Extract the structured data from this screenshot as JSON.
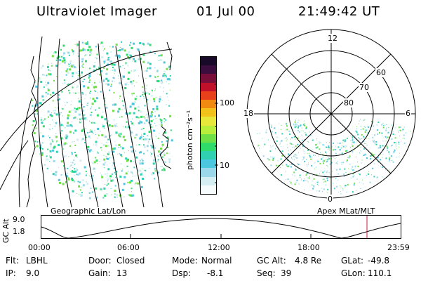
{
  "header": {
    "instrument": "Ultraviolet Imager",
    "date": "01 Jul 00",
    "time": "21:49:42 UT"
  },
  "colorbar": {
    "unit_label": "photon cm⁻²s⁻¹",
    "ticks": [
      "100",
      "10"
    ],
    "colors": [
      "#1a0a2a",
      "#3b0d3e",
      "#7a0e3a",
      "#c0102a",
      "#e8401a",
      "#f08a10",
      "#f2c21a",
      "#e8e83a",
      "#b9ef3a",
      "#6fe046",
      "#2fdb6a",
      "#2fd1b0",
      "#4cc7e0",
      "#9ad8ea",
      "#d4eef2",
      "#f6fbfc"
    ]
  },
  "left_panel": {
    "caption": "Geographic Lat/Lon"
  },
  "right_panel": {
    "caption": "Apex MLat/MLT",
    "mlt_labels": {
      "top": "12",
      "left": "18",
      "right": "6",
      "bottom": "0"
    },
    "lat_labels": [
      "80",
      "70",
      "60"
    ]
  },
  "timeline": {
    "axis_title": "GC Alt",
    "y_ticks": [
      "9.0",
      "1.8"
    ],
    "x_ticks": [
      "00:00",
      "06:00",
      "12:00",
      "18:00",
      "23:59"
    ],
    "marker_color": "#c0203a"
  },
  "status": {
    "flt_label": "Flt:",
    "flt_value": "LBHL",
    "ip_label": "IP:",
    "ip_value": "9.0",
    "door_label": "Door:",
    "door_value": "Closed",
    "gain_label": "Gain:",
    "gain_value": "13",
    "mode_label": "Mode:",
    "mode_value": "Normal",
    "dsp_label": "Dsp:",
    "dsp_value": "-8.1",
    "gcalt_label": "GC Alt:",
    "gcalt_value": "4.8 Re",
    "seq_label": "Seq:",
    "seq_value": "39",
    "glat_label": "GLat:",
    "glat_value": "-49.8",
    "glon_label": "GLon:",
    "glon_value": "110.1"
  }
}
